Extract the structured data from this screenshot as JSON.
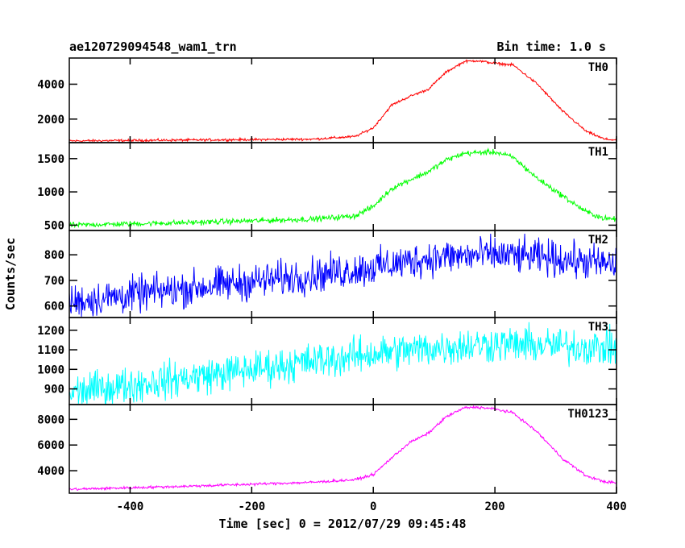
{
  "header": {
    "title": "ae120729094548_wam1_trn",
    "bin_time": "Bin time: 1.0 s"
  },
  "chart_data": {
    "type": "line",
    "xlabel": "Time [sec] 0 = 2012/07/29 09:45:48",
    "ylabel": "Counts/sec",
    "xlim": [
      -500,
      400
    ],
    "xticks": [
      -400,
      -200,
      0,
      200,
      400
    ],
    "panels": [
      {
        "name": "TH0",
        "color": "#ff0000",
        "ylim": [
          650,
          5500
        ],
        "yticks": [
          2000,
          4000
        ],
        "noise": 60,
        "points": [
          [
            -500,
            750
          ],
          [
            -300,
            800
          ],
          [
            -100,
            850
          ],
          [
            -30,
            1000
          ],
          [
            0,
            1500
          ],
          [
            30,
            2800
          ],
          [
            60,
            3300
          ],
          [
            90,
            3700
          ],
          [
            120,
            4700
          ],
          [
            150,
            5300
          ],
          [
            170,
            5350
          ],
          [
            200,
            5200
          ],
          [
            230,
            5100
          ],
          [
            270,
            4000
          ],
          [
            310,
            2500
          ],
          [
            350,
            1300
          ],
          [
            380,
            850
          ],
          [
            400,
            800
          ]
        ]
      },
      {
        "name": "TH1",
        "color": "#00ff00",
        "ylim": [
          420,
          1740
        ],
        "yticks": [
          500,
          1000,
          1500
        ],
        "noise": 35,
        "points": [
          [
            -500,
            500
          ],
          [
            -300,
            540
          ],
          [
            -100,
            590
          ],
          [
            -30,
            640
          ],
          [
            0,
            780
          ],
          [
            30,
            1050
          ],
          [
            60,
            1180
          ],
          [
            90,
            1300
          ],
          [
            120,
            1480
          ],
          [
            150,
            1580
          ],
          [
            200,
            1600
          ],
          [
            230,
            1520
          ],
          [
            270,
            1200
          ],
          [
            310,
            950
          ],
          [
            350,
            700
          ],
          [
            380,
            600
          ],
          [
            400,
            590
          ]
        ]
      },
      {
        "name": "TH2",
        "color": "#0000ff",
        "ylim": [
          555,
          895
        ],
        "yticks": [
          600,
          700,
          800
        ],
        "noise": 60,
        "points": [
          [
            -500,
            615
          ],
          [
            -300,
            670
          ],
          [
            -100,
            720
          ],
          [
            0,
            750
          ],
          [
            100,
            790
          ],
          [
            200,
            800
          ],
          [
            300,
            785
          ],
          [
            400,
            760
          ]
        ]
      },
      {
        "name": "TH3",
        "color": "#00ffff",
        "ylim": [
          820,
          1265
        ],
        "yticks": [
          900,
          1000,
          1100,
          1200
        ],
        "noise": 80,
        "points": [
          [
            -500,
            880
          ],
          [
            -300,
            960
          ],
          [
            -100,
            1040
          ],
          [
            0,
            1080
          ],
          [
            100,
            1110
          ],
          [
            200,
            1130
          ],
          [
            300,
            1120
          ],
          [
            400,
            1110
          ]
        ]
      },
      {
        "name": "TH0123",
        "color": "#ff00ff",
        "ylim": [
          2250,
          9150
        ],
        "yticks": [
          4000,
          6000,
          8000
        ],
        "noise": 90,
        "points": [
          [
            -500,
            2550
          ],
          [
            -300,
            2800
          ],
          [
            -100,
            3100
          ],
          [
            -30,
            3300
          ],
          [
            0,
            3700
          ],
          [
            30,
            5000
          ],
          [
            60,
            6200
          ],
          [
            90,
            6900
          ],
          [
            120,
            8200
          ],
          [
            150,
            8900
          ],
          [
            170,
            8950
          ],
          [
            200,
            8800
          ],
          [
            230,
            8500
          ],
          [
            270,
            7000
          ],
          [
            310,
            5000
          ],
          [
            350,
            3600
          ],
          [
            380,
            3150
          ],
          [
            400,
            3050
          ]
        ]
      }
    ]
  }
}
